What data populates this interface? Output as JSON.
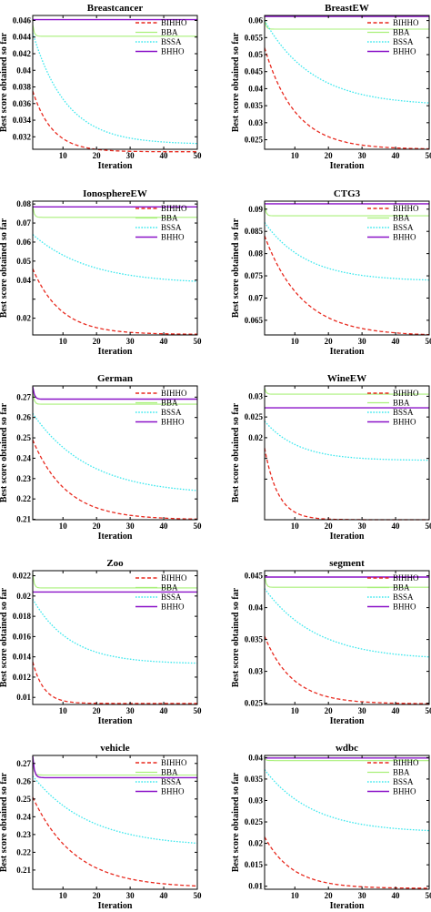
{
  "figure": {
    "xlabel": "Iteration",
    "ylabel": "Best score obtained so far"
  },
  "colors": {
    "BIHHO": "#e8291e",
    "BBA": "#a9f07a",
    "BSSA": "#3ce8ee",
    "BHHO": "#8a12c8"
  },
  "chart_data": [
    {
      "type": "line",
      "title": "Breastcancer",
      "x": [
        1,
        50
      ],
      "xticks": [
        10,
        20,
        30,
        40,
        50
      ],
      "xlim": [
        1,
        50
      ],
      "ylim": [
        0.0305,
        0.0466
      ],
      "yticks": [
        0.032,
        0.034,
        0.036,
        0.038,
        0.04,
        0.042,
        0.044,
        0.046
      ],
      "ytick_labels": [
        "0.032",
        "0.034",
        "0.036",
        "0.038",
        "0.04",
        "0.042",
        "0.044",
        "0.046"
      ],
      "series": [
        {
          "name": "BIHHO",
          "start": 0.0375,
          "end": 0.0302,
          "k": 0.17
        },
        {
          "name": "BBA",
          "start": 0.0455,
          "end": 0.0441,
          "k": 2.5
        },
        {
          "name": "BSSA",
          "start": 0.0445,
          "end": 0.0311,
          "k": 0.1
        },
        {
          "name": "BHHO",
          "start": 0.0461,
          "end": 0.0461,
          "k": 1
        }
      ]
    },
    {
      "type": "line",
      "title": "BreastEW",
      "x": [
        1,
        50
      ],
      "xticks": [
        10,
        20,
        30,
        40,
        50
      ],
      "xlim": [
        1,
        50
      ],
      "ylim": [
        0.0222,
        0.0615
      ],
      "yticks": [
        0.025,
        0.03,
        0.035,
        0.04,
        0.045,
        0.05,
        0.055,
        0.06
      ],
      "ytick_labels": [
        "0.025",
        "0.03",
        "0.035",
        "0.04",
        "0.045",
        "0.05",
        "0.055",
        "0.06"
      ],
      "series": [
        {
          "name": "BIHHO",
          "start": 0.052,
          "end": 0.0222,
          "k": 0.11
        },
        {
          "name": "BBA",
          "start": 0.0605,
          "end": 0.0575,
          "k": 2.5
        },
        {
          "name": "BSSA",
          "start": 0.06,
          "end": 0.035,
          "k": 0.07
        },
        {
          "name": "BHHO",
          "start": 0.0612,
          "end": 0.0612,
          "k": 1
        }
      ]
    },
    {
      "type": "line",
      "title": "IonosphereEW",
      "x": [
        1,
        50
      ],
      "xticks": [
        10,
        20,
        30,
        40,
        50
      ],
      "xlim": [
        1,
        50
      ],
      "ylim": [
        0.0112,
        0.0815
      ],
      "yticks": [
        0.02,
        0.03,
        0.04,
        0.05,
        0.06,
        0.07,
        0.08
      ],
      "ytick_labels": [
        "0.02",
        "",
        "0.04",
        "0.05",
        "0.06",
        "0.07",
        "0.08"
      ],
      "series": [
        {
          "name": "BIHHO",
          "start": 0.046,
          "end": 0.0115,
          "k": 0.12
        },
        {
          "name": "BBA",
          "start": 0.079,
          "end": 0.073,
          "k": 2.5
        },
        {
          "name": "BSSA",
          "start": 0.064,
          "end": 0.038,
          "k": 0.06
        },
        {
          "name": "BHHO",
          "start": 0.0785,
          "end": 0.0785,
          "k": 1
        }
      ]
    },
    {
      "type": "line",
      "title": "CTG3",
      "x": [
        1,
        50
      ],
      "xticks": [
        10,
        20,
        30,
        40,
        50
      ],
      "xlim": [
        1,
        50
      ],
      "ylim": [
        0.0617,
        0.0918
      ],
      "yticks": [
        0.065,
        0.07,
        0.075,
        0.08,
        0.085,
        0.09
      ],
      "ytick_labels": [
        "0.065",
        "0.07",
        "0.075",
        "0.08",
        "0.085",
        "0.09"
      ],
      "series": [
        {
          "name": "BIHHO",
          "start": 0.084,
          "end": 0.0615,
          "k": 0.09
        },
        {
          "name": "BBA",
          "start": 0.091,
          "end": 0.0885,
          "k": 2.5
        },
        {
          "name": "BSSA",
          "start": 0.087,
          "end": 0.0738,
          "k": 0.08
        },
        {
          "name": "BHHO",
          "start": 0.0912,
          "end": 0.0912,
          "k": 1
        }
      ]
    },
    {
      "type": "line",
      "title": "German",
      "x": [
        1,
        50
      ],
      "xticks": [
        10,
        20,
        30,
        40,
        50
      ],
      "xlim": [
        1,
        50
      ],
      "ylim": [
        0.2098,
        0.2755
      ],
      "yticks": [
        0.21,
        0.22,
        0.23,
        0.24,
        0.25,
        0.26,
        0.27
      ],
      "ytick_labels": [
        "0.21",
        "0.22",
        "0.23",
        "0.24",
        "0.25",
        "0.26",
        "0.27"
      ],
      "series": [
        {
          "name": "BIHHO",
          "start": 0.249,
          "end": 0.2098,
          "k": 0.1
        },
        {
          "name": "BBA",
          "start": 0.273,
          "end": 0.2665,
          "k": 2.5
        },
        {
          "name": "BSSA",
          "start": 0.262,
          "end": 0.222,
          "k": 0.06
        },
        {
          "name": "BHHO",
          "start": 0.275,
          "end": 0.269,
          "k": 2
        }
      ]
    },
    {
      "type": "line",
      "title": "WineEW",
      "x": [
        1,
        50
      ],
      "xticks": [
        10,
        20,
        30,
        40,
        50
      ],
      "xlim": [
        1,
        50
      ],
      "ylim": [
        0.0002,
        0.0325
      ],
      "yticks": [
        0.01,
        0.015,
        0.02,
        0.025,
        0.03
      ],
      "ytick_labels": [
        "",
        "",
        "0.02",
        "0.025",
        "0.03"
      ],
      "series": [
        {
          "name": "BIHHO",
          "start": 0.0175,
          "end": 0.0002,
          "k": 0.25
        },
        {
          "name": "BBA",
          "start": 0.032,
          "end": 0.0305,
          "k": 2.5
        },
        {
          "name": "BSSA",
          "start": 0.024,
          "end": 0.0145,
          "k": 0.1
        },
        {
          "name": "BHHO",
          "start": 0.0272,
          "end": 0.0272,
          "k": 1
        }
      ]
    },
    {
      "type": "line",
      "title": "Zoo",
      "x": [
        1,
        50
      ],
      "xticks": [
        10,
        20,
        30,
        40,
        50
      ],
      "xlim": [
        1,
        50
      ],
      "ylim": [
        0.0093,
        0.0225
      ],
      "yticks": [
        0.01,
        0.012,
        0.014,
        0.016,
        0.018,
        0.02,
        0.022
      ],
      "ytick_labels": [
        "0.01",
        "0.012",
        "0.014",
        "0.016",
        "0.018",
        "0.02",
        "0.022"
      ],
      "series": [
        {
          "name": "BIHHO",
          "start": 0.0135,
          "end": 0.0094,
          "k": 0.3
        },
        {
          "name": "BBA",
          "start": 0.0222,
          "end": 0.0208,
          "k": 2.5
        },
        {
          "name": "BSSA",
          "start": 0.0197,
          "end": 0.0133,
          "k": 0.09
        },
        {
          "name": "BHHO",
          "start": 0.0204,
          "end": 0.0204,
          "k": 1
        }
      ]
    },
    {
      "type": "line",
      "title": "segment",
      "x": [
        1,
        50
      ],
      "xticks": [
        10,
        20,
        30,
        40,
        50
      ],
      "xlim": [
        1,
        50
      ],
      "ylim": [
        0.0248,
        0.0458
      ],
      "yticks": [
        0.025,
        0.03,
        0.035,
        0.04,
        0.045
      ],
      "ytick_labels": [
        "0.025",
        "0.03",
        "0.035",
        "0.04",
        "0.045"
      ],
      "series": [
        {
          "name": "BIHHO",
          "start": 0.0355,
          "end": 0.0249,
          "k": 0.12
        },
        {
          "name": "BBA",
          "start": 0.0452,
          "end": 0.0432,
          "k": 2.5
        },
        {
          "name": "BSSA",
          "start": 0.043,
          "end": 0.0318,
          "k": 0.065
        },
        {
          "name": "BHHO",
          "start": 0.0448,
          "end": 0.0448,
          "k": 1
        }
      ]
    },
    {
      "type": "line",
      "title": "vehicle",
      "x": [
        1,
        50
      ],
      "xticks": [
        10,
        20,
        30,
        40,
        50
      ],
      "xlim": [
        1,
        50
      ],
      "ylim": [
        0.1992,
        0.2745
      ],
      "yticks": [
        0.21,
        0.22,
        0.23,
        0.24,
        0.25,
        0.26,
        0.27
      ],
      "ytick_labels": [
        "0.21",
        "0.22",
        "0.23",
        "0.24",
        "0.25",
        "0.26",
        "0.27"
      ],
      "series": [
        {
          "name": "BIHHO",
          "start": 0.251,
          "end": 0.2,
          "k": 0.08
        },
        {
          "name": "BBA",
          "start": 0.27,
          "end": 0.2635,
          "k": 2.5
        },
        {
          "name": "BSSA",
          "start": 0.263,
          "end": 0.223,
          "k": 0.06
        },
        {
          "name": "BHHO",
          "start": 0.274,
          "end": 0.262,
          "k": 2
        }
      ]
    },
    {
      "type": "line",
      "title": "wdbc",
      "x": [
        1,
        50
      ],
      "xticks": [
        10,
        20,
        30,
        40,
        50
      ],
      "xlim": [
        1,
        50
      ],
      "ylim": [
        0.0093,
        0.0405
      ],
      "yticks": [
        0.01,
        0.015,
        0.02,
        0.025,
        0.03,
        0.035,
        0.04
      ],
      "ytick_labels": [
        "0.01",
        "0.015",
        "0.02",
        "0.025",
        "0.03",
        "0.035",
        "0.04"
      ],
      "series": [
        {
          "name": "BIHHO",
          "start": 0.0215,
          "end": 0.0095,
          "k": 0.12
        },
        {
          "name": "BBA",
          "start": 0.0398,
          "end": 0.0393,
          "k": 2.5
        },
        {
          "name": "BSSA",
          "start": 0.0372,
          "end": 0.0225,
          "k": 0.07
        },
        {
          "name": "BHHO",
          "start": 0.0399,
          "end": 0.0399,
          "k": 1
        }
      ]
    }
  ]
}
